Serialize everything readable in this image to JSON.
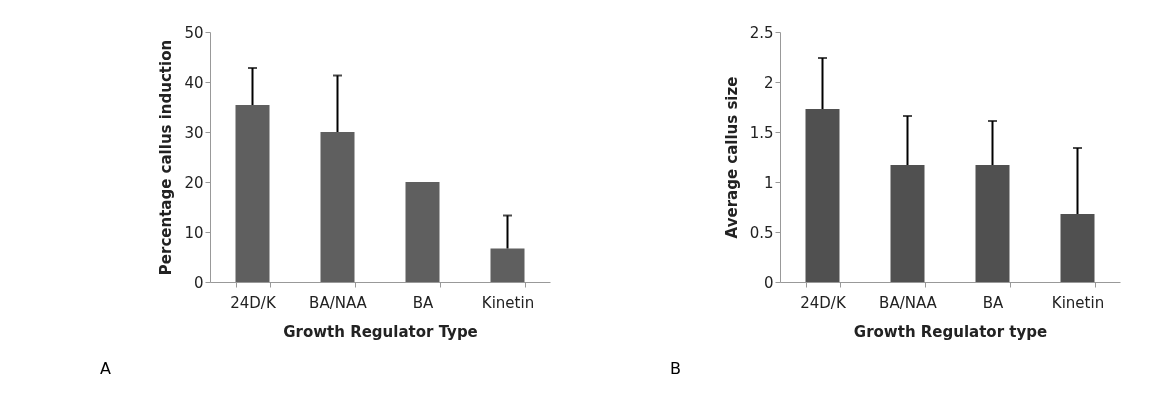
{
  "chart_data": [
    {
      "type": "bar",
      "xlabel": "Growth Regulator Type",
      "ylabel": "Percentage callus induction",
      "categories": [
        "24D/K",
        "BA/NAA",
        "BA",
        "Kinetin"
      ],
      "values": [
        35.4,
        30.0,
        20.0,
        6.7
      ],
      "errors": [
        [
          35.4,
          42.8
        ],
        [
          30.0,
          41.3
        ],
        null,
        [
          6.7,
          13.3
        ]
      ],
      "color": "#5f5f5f",
      "ylim": [
        0,
        50
      ],
      "yticks": [
        0,
        10,
        20,
        30,
        40,
        50
      ],
      "grid": false,
      "annotations": [
        "A"
      ]
    },
    {
      "type": "bar",
      "xlabel": "Growth Regulator type",
      "ylabel": "Average callus size",
      "categories": [
        "24D/K",
        "BA/NAA",
        "BA",
        "Kinetin"
      ],
      "values": [
        1.73,
        1.17,
        1.17,
        0.68
      ],
      "errors": [
        [
          1.73,
          2.24
        ],
        [
          1.17,
          1.66
        ],
        [
          1.17,
          1.61
        ],
        [
          0.68,
          1.34
        ]
      ],
      "color": "#505050",
      "ylim": [
        0,
        2.5
      ],
      "yticks": [
        0,
        0.5,
        1,
        1.5,
        2,
        2.5
      ],
      "grid": false,
      "annotations": [
        "B"
      ]
    }
  ]
}
